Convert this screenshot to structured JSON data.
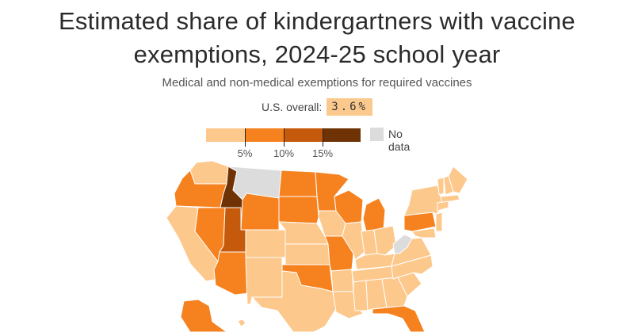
{
  "title_line1": "Estimated share of kindergartners with vaccine",
  "title_line2": "exemptions, 2024-25 school year",
  "subtitle": "Medical and non-medical exemptions for required vaccines",
  "overall": {
    "label": "U.S. overall:",
    "value": "3.6%"
  },
  "legend": {
    "labels": [
      "5%",
      "10%",
      "15%"
    ],
    "nodata_label": "No data",
    "colors": [
      "#fdc88c",
      "#f5821f",
      "#c55a0c",
      "#6e3205"
    ],
    "nodata_color": "#dcdcdc"
  },
  "states": [
    {
      "name": "WA",
      "bin": 0
    },
    {
      "name": "OR",
      "bin": 1
    },
    {
      "name": "ID",
      "bin": 3
    },
    {
      "name": "MT",
      "bin": -1
    },
    {
      "name": "WY",
      "bin": 1
    },
    {
      "name": "CA",
      "bin": 0
    },
    {
      "name": "NV",
      "bin": 1
    },
    {
      "name": "UT",
      "bin": 2
    },
    {
      "name": "AZ",
      "bin": 1
    },
    {
      "name": "CO",
      "bin": 0
    },
    {
      "name": "NM",
      "bin": 0
    },
    {
      "name": "ND",
      "bin": 1
    },
    {
      "name": "SD",
      "bin": 1
    },
    {
      "name": "NE",
      "bin": 0
    },
    {
      "name": "KS",
      "bin": 0
    },
    {
      "name": "OK",
      "bin": 1
    },
    {
      "name": "TX",
      "bin": 0
    },
    {
      "name": "MN",
      "bin": 1
    },
    {
      "name": "IA",
      "bin": 0
    },
    {
      "name": "MO",
      "bin": 1
    },
    {
      "name": "AR",
      "bin": 0
    },
    {
      "name": "LA",
      "bin": 0
    },
    {
      "name": "WI",
      "bin": 1
    },
    {
      "name": "IL",
      "bin": 0
    },
    {
      "name": "MI",
      "bin": 1
    },
    {
      "name": "IN",
      "bin": 0
    },
    {
      "name": "OH",
      "bin": 0
    },
    {
      "name": "KY",
      "bin": 0
    },
    {
      "name": "TN",
      "bin": 0
    },
    {
      "name": "MS",
      "bin": 0
    },
    {
      "name": "AL",
      "bin": 0
    },
    {
      "name": "GA",
      "bin": 0
    },
    {
      "name": "FL",
      "bin": 1
    },
    {
      "name": "SC",
      "bin": 0
    },
    {
      "name": "NC",
      "bin": 0
    },
    {
      "name": "VA",
      "bin": 0
    },
    {
      "name": "WV",
      "bin": -1
    },
    {
      "name": "PA",
      "bin": 1
    },
    {
      "name": "NY",
      "bin": 0
    },
    {
      "name": "VT",
      "bin": 0
    },
    {
      "name": "NH",
      "bin": 0
    },
    {
      "name": "ME",
      "bin": 0
    },
    {
      "name": "MA",
      "bin": 0
    },
    {
      "name": "CT",
      "bin": 0
    },
    {
      "name": "NJ",
      "bin": 0
    },
    {
      "name": "MD",
      "bin": 0
    },
    {
      "name": "AK",
      "bin": 1
    },
    {
      "name": "HI",
      "bin": 0
    }
  ]
}
